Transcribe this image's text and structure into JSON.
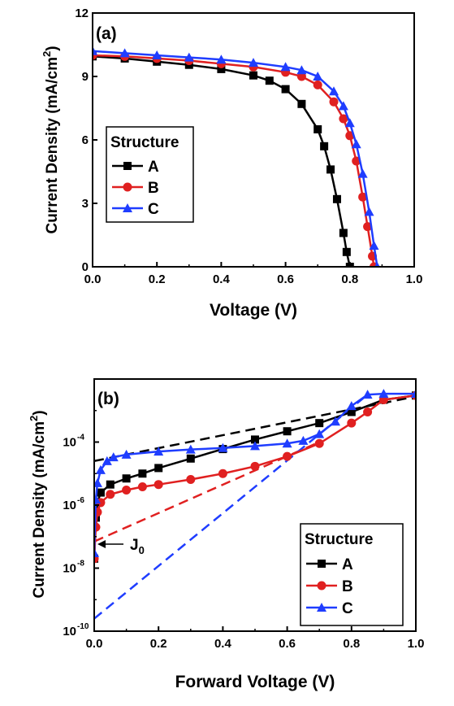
{
  "chart_data": [
    {
      "type": "line",
      "panel_label": "(a)",
      "xlabel": "Voltage (V)",
      "ylabel": "Current Density (mA/cm",
      "ylabel_sup": "2",
      "ylabel_end": ")",
      "xlim": [
        0.0,
        1.0
      ],
      "ylim": [
        0,
        12
      ],
      "xticks": [
        "0.0",
        "0.2",
        "0.4",
        "0.6",
        "0.8",
        "1.0"
      ],
      "xtick_values": [
        0.0,
        0.2,
        0.4,
        0.6,
        0.8,
        1.0
      ],
      "yticks": [
        "0",
        "3",
        "6",
        "9",
        "12"
      ],
      "ytick_values": [
        0,
        3,
        6,
        9,
        12
      ],
      "legend": {
        "title": "Structure",
        "placement": "bottom-left"
      },
      "series": [
        {
          "name": "A",
          "color": "#000000",
          "marker": "square",
          "x": [
            0.0,
            0.1,
            0.2,
            0.3,
            0.4,
            0.5,
            0.55,
            0.6,
            0.65,
            0.7,
            0.72,
            0.74,
            0.76,
            0.78,
            0.79,
            0.8
          ],
          "y": [
            9.95,
            9.85,
            9.7,
            9.55,
            9.35,
            9.05,
            8.8,
            8.4,
            7.7,
            6.5,
            5.7,
            4.6,
            3.2,
            1.6,
            0.7,
            0.0
          ]
        },
        {
          "name": "B",
          "color": "#e02020",
          "marker": "circle",
          "x": [
            0.0,
            0.1,
            0.2,
            0.3,
            0.4,
            0.5,
            0.6,
            0.65,
            0.7,
            0.75,
            0.78,
            0.8,
            0.82,
            0.84,
            0.855,
            0.87,
            0.875
          ],
          "y": [
            10.0,
            9.95,
            9.85,
            9.75,
            9.6,
            9.45,
            9.2,
            9.0,
            8.6,
            7.8,
            7.0,
            6.2,
            5.0,
            3.3,
            1.9,
            0.5,
            0.0
          ]
        },
        {
          "name": "C",
          "color": "#1f3dff",
          "marker": "triangle",
          "x": [
            0.0,
            0.1,
            0.2,
            0.3,
            0.4,
            0.5,
            0.6,
            0.65,
            0.7,
            0.75,
            0.78,
            0.8,
            0.82,
            0.84,
            0.86,
            0.875,
            0.885
          ],
          "y": [
            10.2,
            10.1,
            10.0,
            9.9,
            9.8,
            9.65,
            9.45,
            9.3,
            9.0,
            8.3,
            7.6,
            6.8,
            5.8,
            4.4,
            2.6,
            1.0,
            0.0
          ]
        }
      ]
    },
    {
      "type": "line",
      "panel_label": "(b)",
      "xlabel": "Forward Voltage (V)",
      "ylabel": "Current Density (mA/cm",
      "ylabel_sup": "2",
      "ylabel_end": ")",
      "yscale": "log",
      "xlim": [
        0.0,
        1.0
      ],
      "ylim": [
        1e-10,
        0.01
      ],
      "xticks": [
        "0.0",
        "0.2",
        "0.4",
        "0.6",
        "0.8",
        "1.0"
      ],
      "xtick_values": [
        0.0,
        0.2,
        0.4,
        0.6,
        0.8,
        1.0
      ],
      "yticks": [
        {
          "base": "10",
          "exp": "-4",
          "value": 0.0001
        },
        {
          "base": "10",
          "exp": "-6",
          "value": 1e-06
        },
        {
          "base": "10",
          "exp": "-8",
          "value": 1e-08
        },
        {
          "base": "10",
          "exp": "-10",
          "value": 1e-10
        }
      ],
      "annotation": {
        "text": "J",
        "sub": "0",
        "x": 0.0,
        "y": 7e-08
      },
      "legend": {
        "title": "Structure",
        "placement": "bottom-right"
      },
      "series": [
        {
          "name": "A",
          "color": "#000000",
          "marker": "square",
          "x": [
            0.0,
            0.005,
            0.01,
            0.02,
            0.05,
            0.1,
            0.15,
            0.2,
            0.3,
            0.4,
            0.5,
            0.6,
            0.7,
            0.8,
            0.9,
            1.0
          ],
          "y": [
            2e-08,
            4e-07,
            1.2e-06,
            2.5e-06,
            4.5e-06,
            7e-06,
            1e-05,
            1.5e-05,
            3e-05,
            6e-05,
            0.00012,
            0.00022,
            0.0004,
            0.0009,
            0.0022,
            0.003
          ]
        },
        {
          "name": "B",
          "color": "#e02020",
          "marker": "circle",
          "x": [
            0.0,
            0.005,
            0.01,
            0.02,
            0.05,
            0.1,
            0.15,
            0.2,
            0.3,
            0.4,
            0.5,
            0.6,
            0.7,
            0.8,
            0.85,
            0.9,
            1.0
          ],
          "y": [
            2e-08,
            2e-07,
            6e-07,
            1.2e-06,
            2.2e-06,
            3e-06,
            3.8e-06,
            4.5e-06,
            6.5e-06,
            1e-05,
            1.7e-05,
            3.5e-05,
            9e-05,
            0.0004,
            0.0009,
            0.0022,
            0.003
          ]
        },
        {
          "name": "C",
          "color": "#1f3dff",
          "marker": "triangle",
          "x": [
            0.0,
            0.005,
            0.01,
            0.02,
            0.04,
            0.06,
            0.1,
            0.2,
            0.3,
            0.4,
            0.5,
            0.6,
            0.65,
            0.7,
            0.75,
            0.8,
            0.85,
            0.9,
            1.0
          ],
          "y": [
            3e-08,
            1.5e-06,
            5e-06,
            1.3e-05,
            2.5e-05,
            3.3e-05,
            4e-05,
            5e-05,
            5.8e-05,
            6.5e-05,
            7.5e-05,
            9e-05,
            0.00011,
            0.00018,
            0.00045,
            0.0014,
            0.0032,
            0.0034,
            0.0034
          ]
        }
      ],
      "fit_lines": [
        {
          "color": "#000000",
          "x": [
            0.0,
            1.0
          ],
          "y": [
            2.5e-05,
            0.0028
          ]
        },
        {
          "color": "#e02020",
          "x": [
            0.0,
            0.7
          ],
          "y": [
            7e-08,
            0.0001
          ]
        },
        {
          "color": "#1f3dff",
          "x": [
            0.0,
            0.85
          ],
          "y": [
            2.5e-10,
            0.0032
          ]
        }
      ]
    }
  ]
}
